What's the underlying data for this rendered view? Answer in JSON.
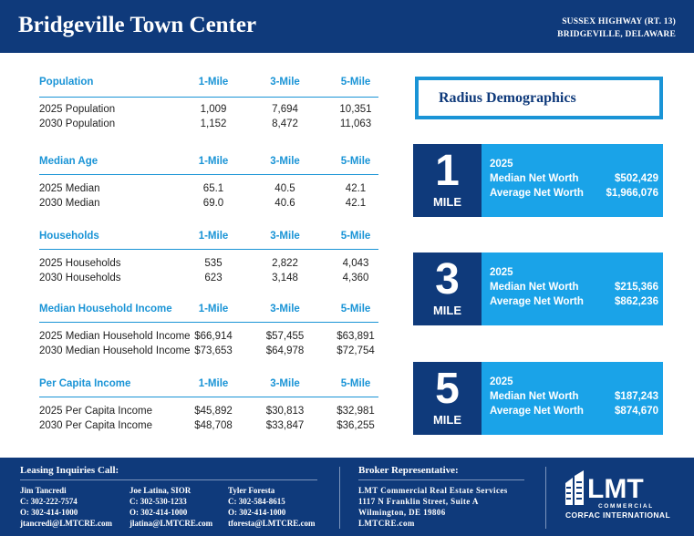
{
  "header": {
    "title": "Bridgeville Town Center",
    "address_line1": "SUSSEX HIGHWAY (RT. 13)",
    "address_line2": "BRIDGEVILLE, DELAWARE"
  },
  "tables": [
    {
      "heading": "Population",
      "col1": "1-Mile",
      "col2": "3-Mile",
      "col3": "5-Mile",
      "rows": [
        {
          "label": "2025 Population",
          "v1": "1,009",
          "v2": "7,694",
          "v3": "10,351"
        },
        {
          "label": "2030 Population",
          "v1": "1,152",
          "v2": "8,472",
          "v3": "11,063"
        }
      ]
    },
    {
      "heading": "Median Age",
      "col1": "1-Mile",
      "col2": "3-Mile",
      "col3": "5-Mile",
      "rows": [
        {
          "label": "2025 Median",
          "v1": "65.1",
          "v2": "40.5",
          "v3": "42.1"
        },
        {
          "label": "2030 Median",
          "v1": "69.0",
          "v2": "40.6",
          "v3": "42.1"
        }
      ]
    },
    {
      "heading": "Households",
      "col1": "1-Mile",
      "col2": "3-Mile",
      "col3": "5-Mile",
      "rows": [
        {
          "label": "2025 Households",
          "v1": "535",
          "v2": "2,822",
          "v3": "4,043"
        },
        {
          "label": "2030 Households",
          "v1": "623",
          "v2": "3,148",
          "v3": "4,360"
        }
      ]
    },
    {
      "heading": "Median Household Income",
      "col1": "1-Mile",
      "col2": "3-Mile",
      "col3": "5-Mile",
      "rows": [
        {
          "label": "2025 Median Household Income",
          "v1": "$66,914",
          "v2": "$57,455",
          "v3": "$63,891"
        },
        {
          "label": "2030 Median Household Income",
          "v1": "$73,653",
          "v2": "$64,978",
          "v3": "$72,754"
        }
      ]
    },
    {
      "heading": "Per Capita Income",
      "col1": "1-Mile",
      "col2": "3-Mile",
      "col3": "5-Mile",
      "rows": [
        {
          "label": "2025 Per Capita Income",
          "v1": "$45,892",
          "v2": "$30,813",
          "v3": "$32,981"
        },
        {
          "label": "2030 Per Capita Income",
          "v1": "$48,708",
          "v2": "$33,847",
          "v3": "$36,255"
        }
      ]
    }
  ],
  "radius": {
    "title": "Radius Demographics",
    "cards": [
      {
        "number": "1",
        "unit": "MILE",
        "year": "2025",
        "nw_label": "Median Net Worth",
        "nw_value": "$502,429",
        "avg_label": "Average Net Worth",
        "avg_value": "$1,966,076"
      },
      {
        "number": "3",
        "unit": "MILE",
        "year": "2025",
        "nw_label": "Median Net Worth",
        "nw_value": "$215,366",
        "avg_label": "Average Net Worth",
        "avg_value": "$862,236"
      },
      {
        "number": "5",
        "unit": "MILE",
        "year": "2025",
        "nw_label": "Median Net Worth",
        "nw_value": "$187,243",
        "avg_label": "Average Net Worth",
        "avg_value": "$874,670"
      }
    ]
  },
  "footer": {
    "leasing_label": "Leasing Inquiries Call:",
    "agents": [
      {
        "name": "Jim Tancredi",
        "cell": "C: 302-222-7574",
        "office": "O: 302-414-1000",
        "email": "jtancredi@LMTCRE.com"
      },
      {
        "name": "Joe Latina, SIOR",
        "cell": "C: 302-530-1233",
        "office": "O: 302-414-1000",
        "email": "jlatina@LMTCRE.com"
      },
      {
        "name": "Tyler Foresta",
        "cell": "C: 302-584-8615",
        "office": "O: 302-414-1000",
        "email": "tforesta@LMTCRE.com"
      }
    ],
    "broker_label": "Broker Representative:",
    "broker": {
      "company": "LMT Commercial Real Estate Services",
      "street": "1117 N Franklin Street, Suite A",
      "city": "Wilmington, DE 19806",
      "web": "LMTCRE.com"
    },
    "logo": {
      "mark": "LMT",
      "sub": "COMMERCIAL",
      "tagline": "CORFAC INTERNATIONAL"
    }
  },
  "colors": {
    "navy": "#0f3a7b",
    "accent": "#1a94d6",
    "card": "#1aa3e8"
  }
}
